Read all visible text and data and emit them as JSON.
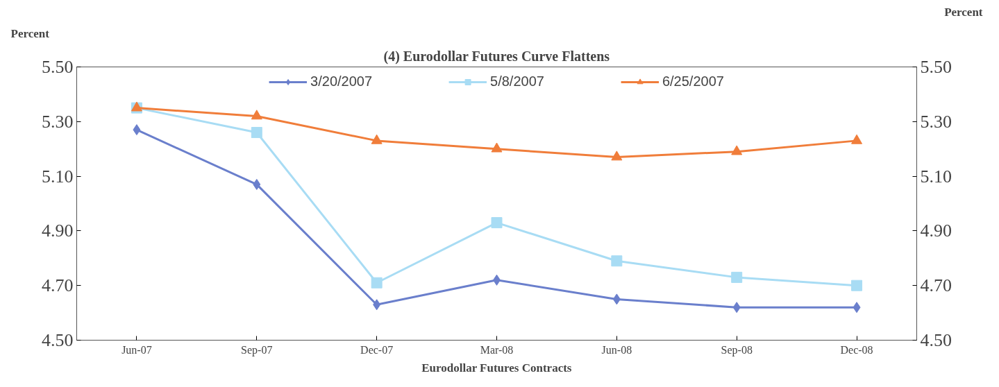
{
  "chart_data": {
    "type": "line",
    "title": "(4) Eurodollar Futures Curve Flattens",
    "xlabel": "Eurodollar Futures Contracts",
    "ylabel": "Percent",
    "y2label": "Percent",
    "categories": [
      "Jun-07",
      "Sep-07",
      "Dec-07",
      "Mar-08",
      "Jun-08",
      "Sep-08",
      "Dec-08"
    ],
    "series": [
      {
        "name": "3/20/2007",
        "color": "#6a7fcc",
        "marker": "diamond",
        "values": [
          5.27,
          5.07,
          4.63,
          4.72,
          4.65,
          4.62,
          4.62
        ]
      },
      {
        "name": "5/8/2007",
        "color": "#a8dcf4",
        "marker": "square",
        "values": [
          5.35,
          5.26,
          4.71,
          4.93,
          4.79,
          4.73,
          4.7
        ]
      },
      {
        "name": "6/25/2007",
        "color": "#f07d3a",
        "marker": "triangle",
        "values": [
          5.35,
          5.32,
          5.23,
          5.2,
          5.17,
          5.19,
          5.23
        ]
      }
    ],
    "ylim": [
      4.5,
      5.5
    ],
    "yticks": [
      {
        "value": 4.5,
        "label": "4.50"
      },
      {
        "value": 4.7,
        "label": "4.70"
      },
      {
        "value": 4.9,
        "label": "4.90"
      },
      {
        "value": 5.1,
        "label": "5.10"
      },
      {
        "value": 5.3,
        "label": "5.30"
      },
      {
        "value": 5.5,
        "label": "5.50"
      }
    ],
    "y2lim": [
      4.5,
      5.5
    ],
    "y2ticks": [
      {
        "value": 4.5,
        "label": "4.50"
      },
      {
        "value": 4.7,
        "label": "4.70"
      },
      {
        "value": 4.9,
        "label": "4.90"
      },
      {
        "value": 5.1,
        "label": "5.10"
      },
      {
        "value": 5.3,
        "label": "5.30"
      },
      {
        "value": 5.5,
        "label": "5.50"
      }
    ],
    "legend": "top",
    "grid": false,
    "line_style": "solid"
  }
}
